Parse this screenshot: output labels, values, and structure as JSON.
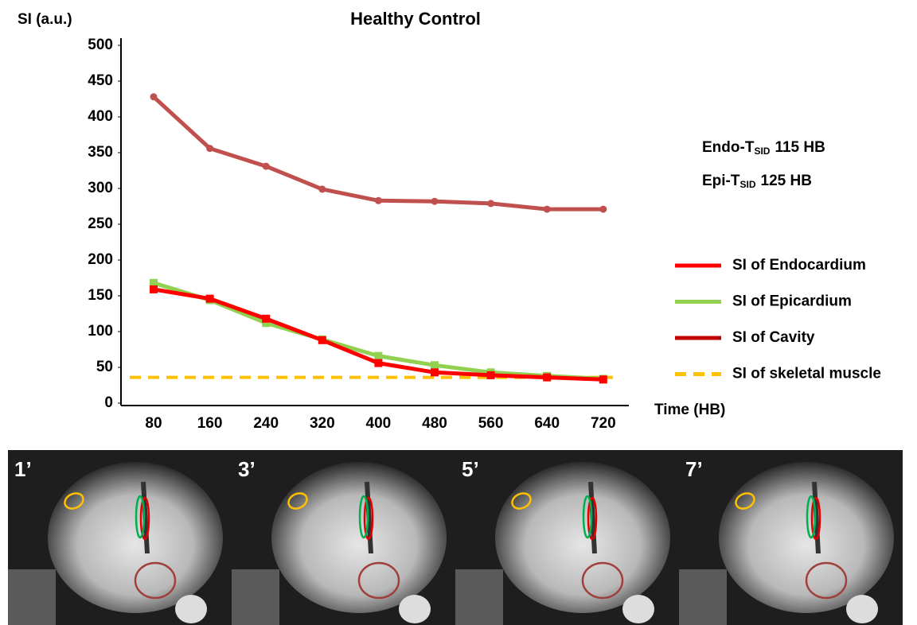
{
  "chart_data": {
    "type": "line",
    "title": "Healthy Control",
    "y_label": "SI (a.u.)",
    "x_label": "Time (HB)",
    "categories": [
      "80",
      "160",
      "240",
      "320",
      "400",
      "480",
      "560",
      "640",
      "720"
    ],
    "ylim": [
      0,
      500
    ],
    "yticks": [
      0,
      50,
      100,
      150,
      200,
      250,
      300,
      350,
      400,
      450,
      500
    ],
    "grid": false,
    "legend": "right",
    "annotations": [
      {
        "prefix": "Endo-T",
        "sub": "SID",
        "suffix": "115 HB"
      },
      {
        "prefix": "Epi-T",
        "sub": "SID",
        "suffix": "125 HB"
      }
    ],
    "series": [
      {
        "name": "SI of Endocardium",
        "color": "#ff0000",
        "marker": "square",
        "values": [
          159,
          146,
          118,
          88,
          56,
          43,
          39,
          36,
          33
        ]
      },
      {
        "name": "SI of Epicardium",
        "color": "#92d050",
        "marker": "square",
        "values": [
          168,
          144,
          112,
          89,
          66,
          53,
          43,
          38,
          34
        ]
      },
      {
        "name": "SI of Cavity",
        "color": "#c0504d",
        "marker": "circle",
        "values": [
          428,
          356,
          331,
          299,
          283,
          282,
          279,
          271,
          271
        ]
      },
      {
        "name": "SI of skeletal muscle",
        "color": "#ffc000",
        "dashed": true,
        "values": [
          36,
          36,
          36,
          36,
          36,
          36,
          36,
          36,
          36
        ]
      }
    ]
  },
  "images": {
    "labels": [
      "1’",
      "3’",
      "5’",
      "7’"
    ]
  }
}
